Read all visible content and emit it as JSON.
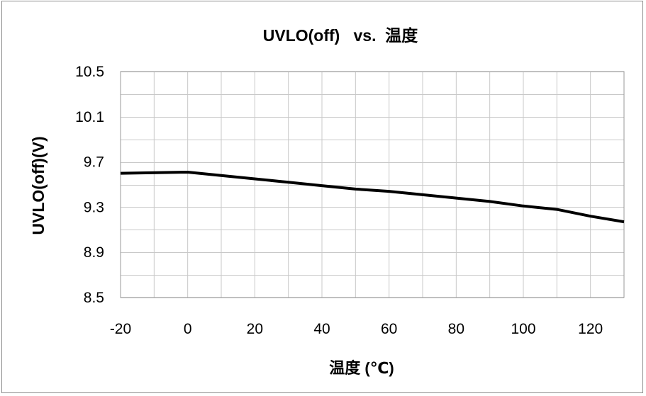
{
  "chart_data": {
    "type": "line",
    "title": "UVLO(off)   vs.  温度",
    "xlabel": "温度 (℃)",
    "ylabel": "UVLO(off)(V)",
    "xlim": [
      -20,
      130
    ],
    "ylim": [
      8.5,
      10.5
    ],
    "x_ticks": [
      -20,
      0,
      20,
      40,
      60,
      80,
      100,
      120
    ],
    "x_tick_labels": [
      "-20",
      "0",
      "20",
      "40",
      "60",
      "80",
      "100",
      "120"
    ],
    "y_ticks": [
      8.5,
      8.9,
      9.3,
      9.7,
      10.1,
      10.5
    ],
    "y_tick_labels": [
      "8.5",
      "8.9",
      "9.3",
      "9.7",
      "10.1",
      "10.5"
    ],
    "x_minor_step": 10,
    "y_minor_step": 0.2,
    "grid": true,
    "legend": "none",
    "line_color": "#000000",
    "grid_color": "#c8c8c8",
    "series": [
      {
        "x": [
          -20,
          0,
          10,
          20,
          30,
          40,
          50,
          60,
          70,
          80,
          90,
          100,
          110,
          120,
          130
        ],
        "values": [
          9.6,
          9.61,
          9.58,
          9.55,
          9.52,
          9.49,
          9.46,
          9.44,
          9.41,
          9.38,
          9.35,
          9.31,
          9.28,
          9.22,
          9.17
        ]
      }
    ]
  }
}
